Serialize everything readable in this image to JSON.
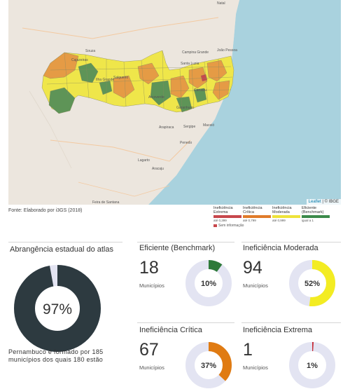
{
  "map": {
    "cities": [
      {
        "name": "Natal"
      },
      {
        "name": "João Pessoa"
      },
      {
        "name": "Campina Grande"
      },
      {
        "name": "Santa Luzia"
      },
      {
        "name": "Souza"
      },
      {
        "name": "Cajazeiras"
      },
      {
        "name": "Salgueiro"
      },
      {
        "name": "Arcoverde"
      },
      {
        "name": "Caruaru"
      },
      {
        "name": "Garanhuns"
      },
      {
        "name": "Maceió"
      },
      {
        "name": "Arapiraca"
      },
      {
        "name": "Penedo"
      },
      {
        "name": "Lagarto"
      },
      {
        "name": "Aracaju"
      },
      {
        "name": "Feira de Santana"
      },
      {
        "name": "Ilha Grande"
      },
      {
        "name": "Sergipe"
      }
    ],
    "attribution_leaflet": "Leaflet",
    "attribution_rest": "| © IBGE"
  },
  "source_text": "Fonte: Elaborado por i3GS (2018)",
  "legend": {
    "items": [
      {
        "label": "Ineficiência Extrema",
        "range": "até 0,399",
        "color": "#c7474c"
      },
      {
        "label": "Ineficiência Crítica",
        "range": "até 0,799",
        "color": "#e07b2a"
      },
      {
        "label": "Ineficiência Moderada",
        "range": "até 0,999",
        "color": "#eee33a"
      },
      {
        "label": "Eficiente (Benchmark)",
        "range": "igual a 1",
        "color": "#3c8a4a"
      }
    ],
    "no_info": "Sem informação"
  },
  "coverage": {
    "title": "Abrangência estadual do atlas",
    "percent_label": "97%",
    "fraction": 0.97,
    "color": "#2d3a40",
    "description": "Pernambuco é formado por 185 municípios dos quais 180 estão"
  },
  "cards": [
    {
      "title": "Eficiente (Benchmark)",
      "count": "18",
      "unit": "Municípios",
      "percent_label": "10%",
      "fraction": 0.1,
      "color": "#2e7a3a"
    },
    {
      "title": "Ineficiência Moderada",
      "count": "94",
      "unit": "Municípios",
      "percent_label": "52%",
      "fraction": 0.52,
      "color": "#f3ec22"
    },
    {
      "title": "Ineficiência Crítica",
      "count": "67",
      "unit": "Municípios",
      "percent_label": "37%",
      "fraction": 0.37,
      "color": "#e07b12"
    },
    {
      "title": "Ineficiência Extrema",
      "count": "1",
      "unit": "Municípios",
      "percent_label": "1%",
      "fraction": 0.01,
      "color": "#c7303a"
    }
  ]
}
